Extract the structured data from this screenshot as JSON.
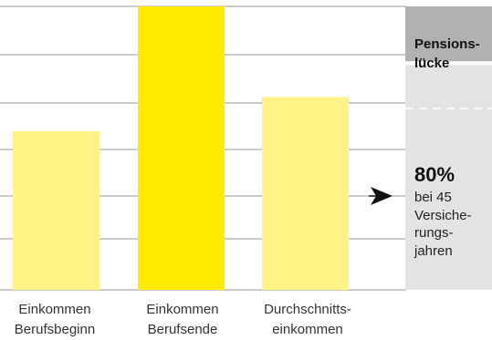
{
  "chart_data": {
    "type": "bar",
    "categories": [
      "Einkommen\nBerufsbeginn",
      "Einkommen\nBerufsende",
      "Durchschnitts-\neinkommen"
    ],
    "values": [
      56,
      100,
      68
    ],
    "ylim": [
      0,
      100
    ],
    "grid": true,
    "bar_colors": [
      "#fff385",
      "#ffeb00",
      "#fff385"
    ],
    "stacked_reference": {
      "lower_label_value": "80%",
      "lower_label_caption": "bei 45\nVersiche-\nrungs-\njahren",
      "upper_label": "Pensions-\nlücke",
      "lower_color": "#e3e3e3",
      "upper_color": "#b1b1b1"
    }
  }
}
